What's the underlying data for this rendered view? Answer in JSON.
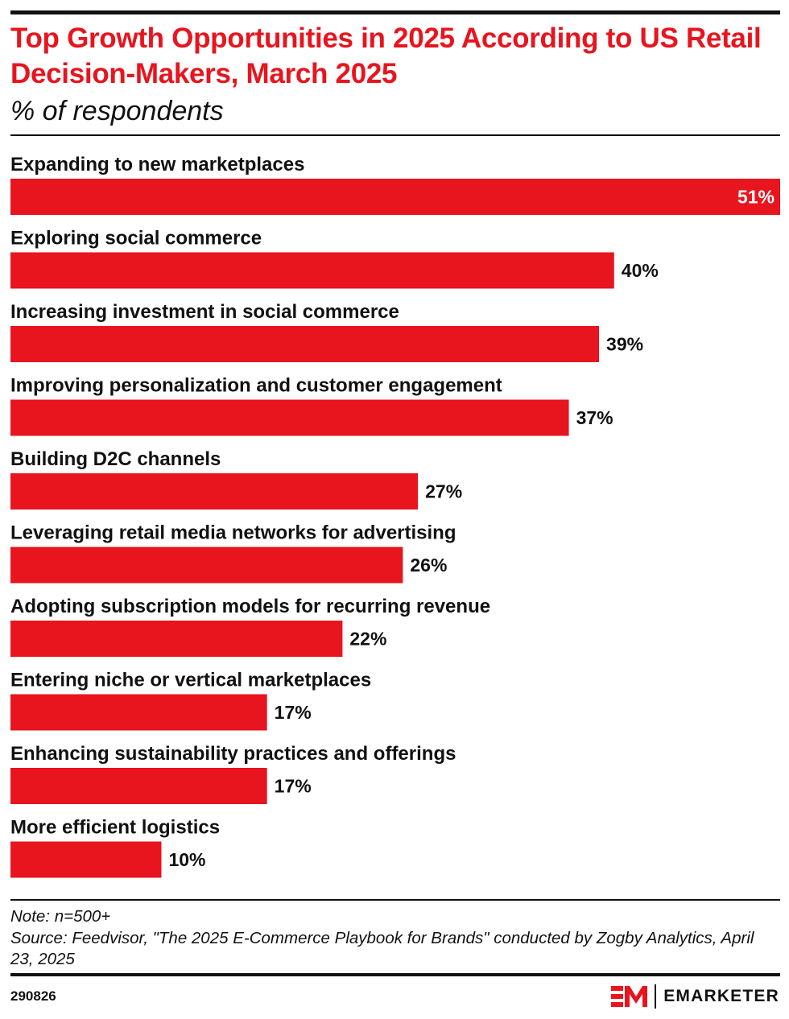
{
  "header": {
    "title": "Top Growth Opportunities in 2025 According to US Retail Decision-Makers, March 2025",
    "subtitle": "% of respondents"
  },
  "colors": {
    "bar": "#e8141e",
    "text": "#111111",
    "inside_label": "#ffffff"
  },
  "chart_data": {
    "type": "bar",
    "orientation": "horizontal",
    "title": "Top Growth Opportunities in 2025 According to US Retail Decision-Makers, March 2025",
    "subtitle": "% of respondents",
    "categories": [
      "Expanding to new marketplaces",
      "Exploring social commerce",
      "Increasing investment in social commerce",
      "Improving personalization and customer engagement",
      "Building D2C channels",
      "Leveraging retail media networks for advertising",
      "Adopting subscription models for recurring revenue",
      "Entering niche or vertical marketplaces",
      "Enhancing sustainability practices and offerings",
      "More efficient logistics"
    ],
    "values": [
      51,
      40,
      39,
      37,
      27,
      26,
      22,
      17,
      17,
      10
    ],
    "value_labels": [
      "51%",
      "40%",
      "39%",
      "37%",
      "27%",
      "26%",
      "22%",
      "17%",
      "17%",
      "10%"
    ],
    "xlim": [
      0,
      51
    ],
    "grid": false,
    "legend": "none"
  },
  "footer": {
    "note": "Note: n=500+",
    "source": "Source: Feedvisor, \"The 2025 E-Commerce Playbook for Brands\" conducted by Zogby Analytics, April 23, 2025",
    "chart_id": "290826",
    "brand": "EMARKETER"
  },
  "icons": {
    "logo": "emarketer-em-logo-icon"
  }
}
